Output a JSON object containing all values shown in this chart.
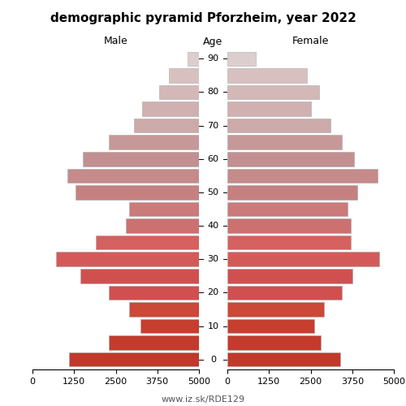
{
  "title": "demographic pyramid Pforzheim, year 2022",
  "age_groups": [
    0,
    5,
    10,
    15,
    20,
    25,
    30,
    35,
    40,
    45,
    50,
    55,
    60,
    65,
    70,
    75,
    80,
    85,
    90
  ],
  "male_vals": [
    3900,
    2700,
    1750,
    2100,
    2700,
    3550,
    4300,
    3100,
    2200,
    2100,
    3700,
    3950,
    3500,
    2700,
    1950,
    1700,
    1200,
    900,
    350
  ],
  "female_vals": [
    3400,
    2800,
    2600,
    2900,
    3450,
    3750,
    4550,
    3700,
    3700,
    3600,
    3900,
    4500,
    3800,
    3450,
    3100,
    2500,
    2750,
    2400,
    850
  ],
  "male_colors": [
    "#c0392b",
    "#c33b2d",
    "#c63e30",
    "#cc4838",
    "#d05050",
    "#d05050",
    "#d45a5a",
    "#d46060",
    "#cc7070",
    "#cc7a7a",
    "#c68080",
    "#c68a8a",
    "#c29090",
    "#c69898",
    "#ccaaaa",
    "#d0b0b0",
    "#d4b8b8",
    "#d8c0c0",
    "#dccece"
  ],
  "female_colors": [
    "#c0392b",
    "#c33b2d",
    "#c63e30",
    "#cc4838",
    "#d05050",
    "#d05050",
    "#d45a5a",
    "#d46060",
    "#cc7070",
    "#cc7a7a",
    "#c68080",
    "#c68a8a",
    "#c29090",
    "#c69898",
    "#ccaaaa",
    "#d0b0b0",
    "#d4b8b8",
    "#d8c0c0",
    "#dccece"
  ],
  "xlim": 5000,
  "label_male": "Male",
  "label_female": "Female",
  "label_age": "Age",
  "url_text": "www.iz.sk/RDE129",
  "tick_positions": [
    0,
    1250,
    2500,
    3750,
    5000
  ],
  "tick_labels": [
    "5000",
    "3750",
    "2500",
    "1250",
    "0"
  ],
  "tick_labels_f": [
    "0",
    "1250",
    "2500",
    "3750",
    "5000"
  ],
  "background_color": "#ffffff",
  "bar_height": 0.85,
  "title_fontsize": 11,
  "label_fontsize": 9,
  "tick_fontsize": 8,
  "age_fontsize": 8,
  "url_fontsize": 8,
  "age_label_multiples": [
    0,
    10,
    20,
    30,
    40,
    50,
    60,
    70,
    80,
    90
  ]
}
